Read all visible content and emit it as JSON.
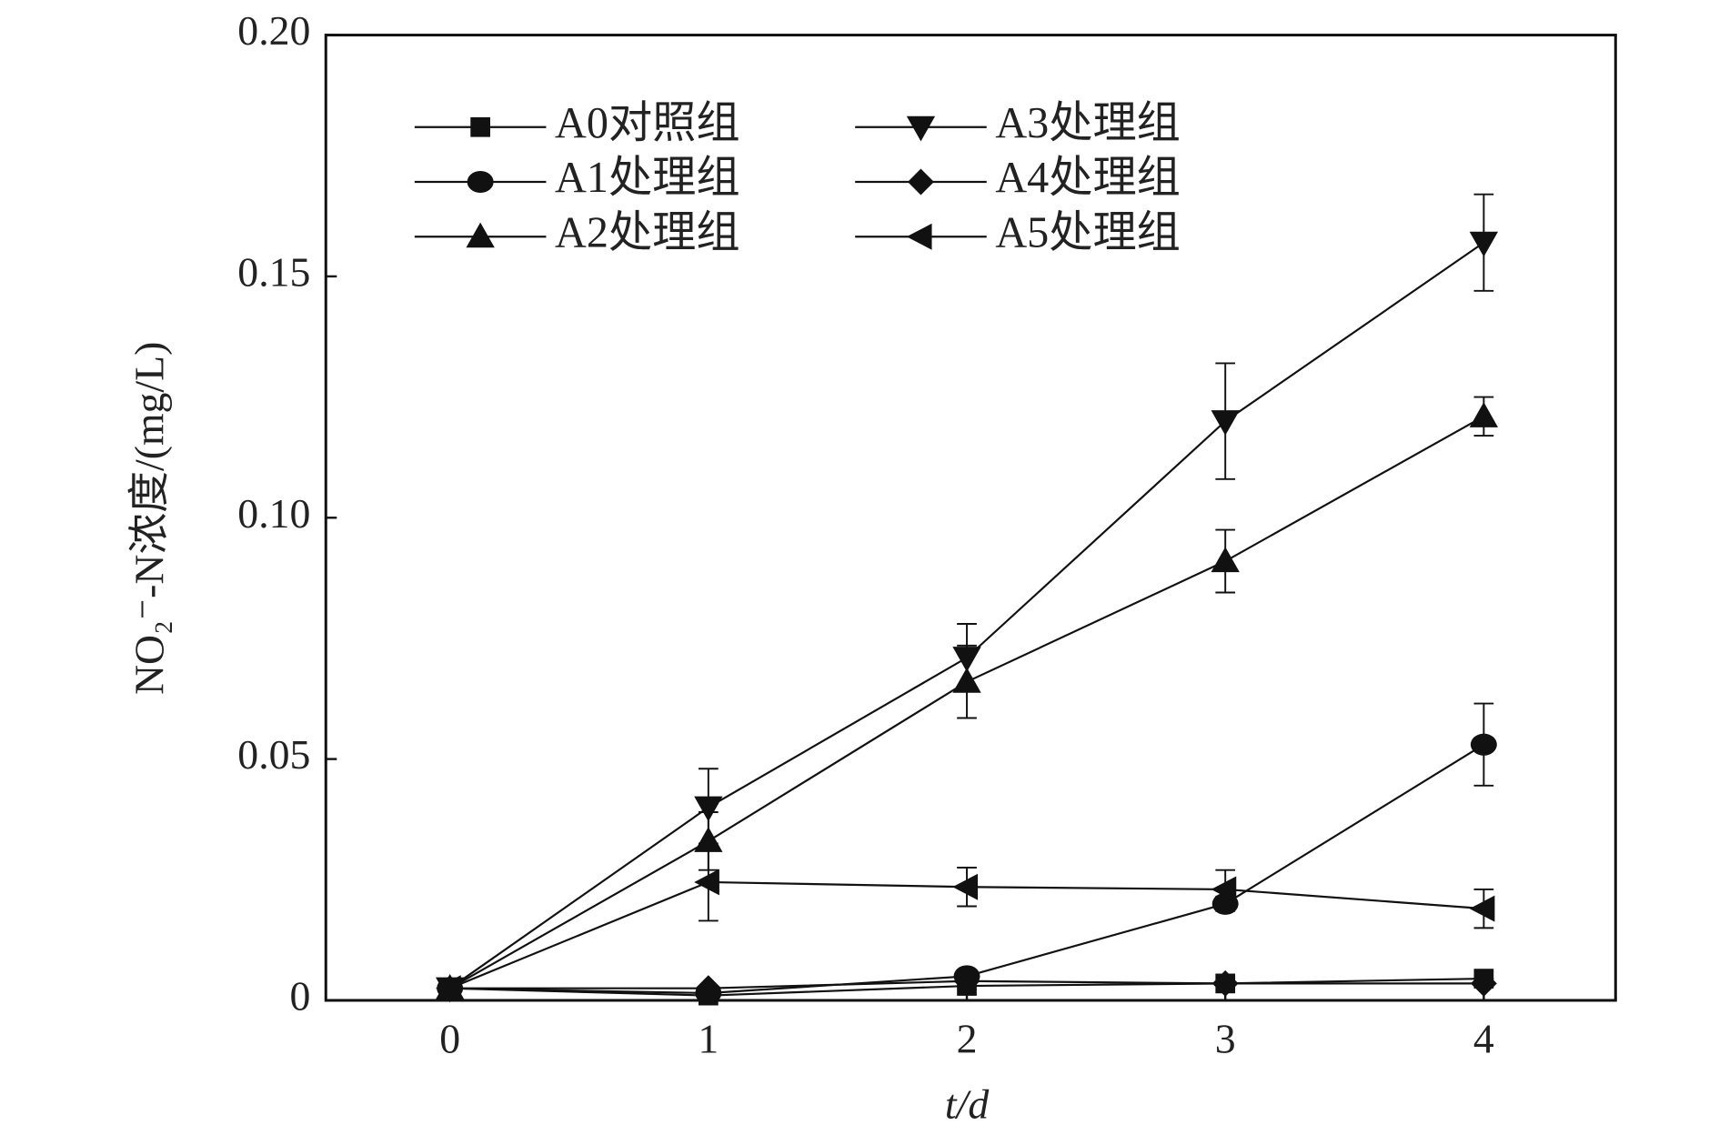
{
  "chart_data": {
    "type": "line",
    "x_label": "t/d",
    "y_label": "NO₂⁻-N浓度/(mg/L)",
    "x": [
      0,
      1,
      2,
      3,
      4
    ],
    "xlim": [
      -0.48,
      4.51
    ],
    "xticks": [
      0,
      1,
      2,
      3,
      4
    ],
    "ylim": [
      0,
      0.2
    ],
    "yticks": [
      0,
      0.05,
      {
        "value": 0.1,
        "label": "0.10"
      },
      0.15,
      {
        "value": 0.2,
        "label": "0.20"
      }
    ],
    "grid": false,
    "legend": "upper left",
    "series": [
      {
        "name": "A0对照组",
        "color": "#111111",
        "marker": "square",
        "values": [
          0.0025,
          0.001,
          0.003,
          0.0035,
          0.0045
        ],
        "errors": [
          0,
          0,
          0,
          0,
          0
        ]
      },
      {
        "name": "A1处理组",
        "color": "#111111",
        "marker": "circle",
        "values": [
          0.0025,
          0.0015,
          0.005,
          0.02,
          0.053
        ],
        "errors": [
          0,
          0,
          0.001,
          0.0015,
          0.0085
        ]
      },
      {
        "name": "A2处理组",
        "color": "#111111",
        "marker": "triangle-up",
        "values": [
          0.0025,
          0.033,
          0.066,
          0.091,
          0.121
        ],
        "errors": [
          0,
          0.006,
          0.0075,
          0.0065,
          0.004
        ]
      },
      {
        "name": "A3处理组",
        "color": "#111111",
        "marker": "triangle-down",
        "values": [
          0.0025,
          0.04,
          0.071,
          0.12,
          0.157
        ],
        "errors": [
          0,
          0.008,
          0.007,
          0.012,
          0.01
        ]
      },
      {
        "name": "A4处理组",
        "color": "#111111",
        "marker": "diamond",
        "values": [
          0.0025,
          0.0025,
          0.004,
          0.0035,
          0.0035
        ],
        "errors": [
          0,
          0,
          0,
          0,
          0
        ]
      },
      {
        "name": "A5处理组",
        "color": "#111111",
        "marker": "triangle-left",
        "values": [
          0.0025,
          0.0245,
          0.0235,
          0.023,
          0.019
        ],
        "errors": [
          0,
          0.008,
          0.004,
          0.004,
          0.004
        ]
      }
    ]
  }
}
